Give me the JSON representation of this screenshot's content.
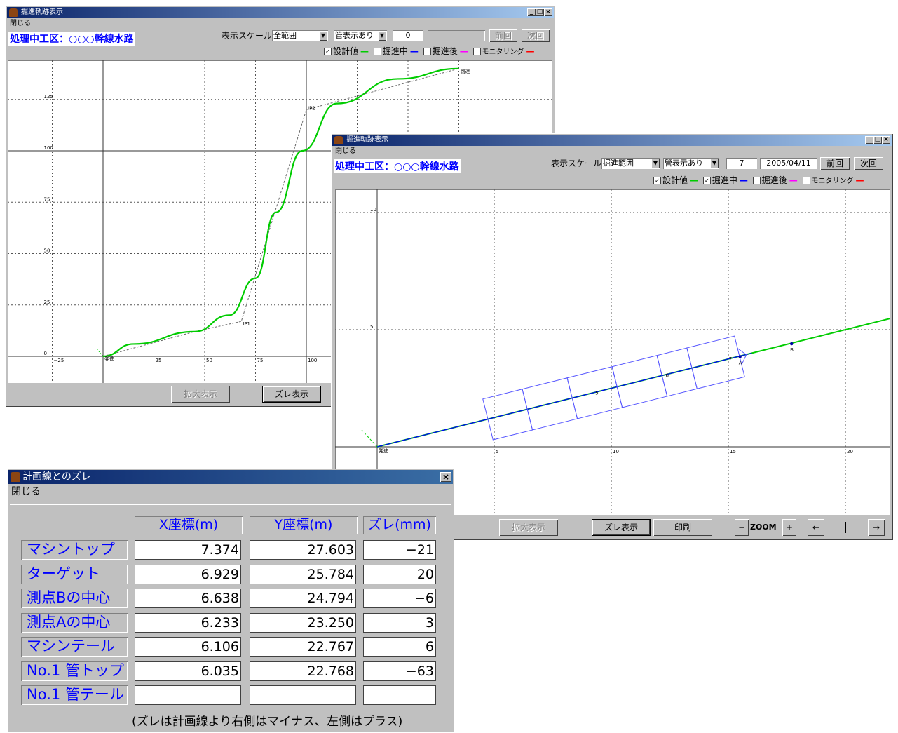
{
  "window1": {
    "title": "掘進軌跡表示",
    "menu": "閉じる",
    "heading": "処理中工区：○○○幹線水路",
    "scale_label": "表示スケール",
    "scale_value": "全範囲",
    "pipe_value": "管表示あり",
    "index": "0",
    "date": "",
    "prev": "前回",
    "next": "次回",
    "legend": {
      "design": "設計値",
      "design_checked": true,
      "driving": "掘進中",
      "driving_checked": false,
      "after": "掘進後",
      "after_checked": false,
      "monitoring": "モニタリング",
      "monitoring_checked": false
    },
    "btn_zoom": "拡大表示",
    "btn_dev": "ズレ表示"
  },
  "window2": {
    "title": "掘進軌跡表示",
    "menu": "閉じる",
    "heading": "処理中工区：○○○幹線水路",
    "scale_label": "表示スケール",
    "scale_value": "掘進範囲",
    "pipe_value": "管表示あり",
    "index": "7",
    "date": "2005/04/11",
    "prev": "前回",
    "next": "次回",
    "legend": {
      "design": "設計値",
      "design_checked": true,
      "driving": "掘進中",
      "driving_checked": true,
      "after": "掘進後",
      "after_checked": false,
      "monitoring": "モニタリング",
      "monitoring_checked": false
    },
    "btn_zoom": "拡大表示",
    "btn_dev": "ズレ表示",
    "btn_print": "印刷",
    "zoom_label": "ZOOM",
    "zoom_minus": "−",
    "zoom_plus": "+",
    "pan_left": "←",
    "pan_right": "→"
  },
  "dialog": {
    "title": "計画線とのズレ",
    "menu": "閉じる",
    "columns": [
      "X座標(m)",
      "Y座標(m)",
      "ズレ(mm)"
    ],
    "rows": [
      {
        "label": "マシントップ",
        "x": "7.374",
        "y": "27.603",
        "d": "−21"
      },
      {
        "label": "ターゲット",
        "x": "6.929",
        "y": "25.784",
        "d": "20"
      },
      {
        "label": "測点Bの中心",
        "x": "6.638",
        "y": "24.794",
        "d": "−6"
      },
      {
        "label": "測点Aの中心",
        "x": "6.233",
        "y": "23.250",
        "d": "3"
      },
      {
        "label": "マシンテール",
        "x": "6.106",
        "y": "22.767",
        "d": "6"
      },
      {
        "label": "No.1 管トップ",
        "x": "6.035",
        "y": "22.768",
        "d": "−63"
      },
      {
        "label": "No.1 管テール",
        "x": "",
        "y": "",
        "d": ""
      }
    ],
    "note": "(ズレは計画線より右側はマイナス、左側はプラス)"
  },
  "chart_data": [
    {
      "type": "line",
      "title": "",
      "x_ticks": [
        "−25",
        "25",
        "50",
        "75",
        "100"
      ],
      "y_ticks": [
        "0",
        "25",
        "50",
        "75",
        "100",
        "125"
      ],
      "point_labels": [
        "発進",
        "IP1",
        "IP2",
        "到達"
      ],
      "series": [
        {
          "name": "設計値",
          "x": [
            0,
            15,
            45,
            62,
            75,
            85,
            98,
            115,
            145,
            175
          ],
          "y": [
            0,
            6,
            12,
            20,
            38,
            70,
            100,
            123,
            135,
            140
          ]
        }
      ]
    },
    {
      "type": "line",
      "title": "",
      "x_ticks": [
        "5",
        "10",
        "15",
        "20"
      ],
      "y_ticks": [
        "5",
        "10"
      ],
      "point_labels": [
        "発進",
        "5",
        "6",
        "7",
        "A",
        "B"
      ],
      "series": [
        {
          "name": "設計値",
          "x": [
            0,
            22
          ],
          "y": [
            0,
            5.5
          ]
        },
        {
          "name": "掘進中",
          "x": [
            0,
            16
          ],
          "y": [
            0,
            4.0
          ]
        }
      ]
    }
  ],
  "colors": {
    "design": "#00cc00",
    "driving": "#0000ff",
    "after": "#ff00ff",
    "monitoring": "#ff0000",
    "heading": "#0000ff"
  }
}
